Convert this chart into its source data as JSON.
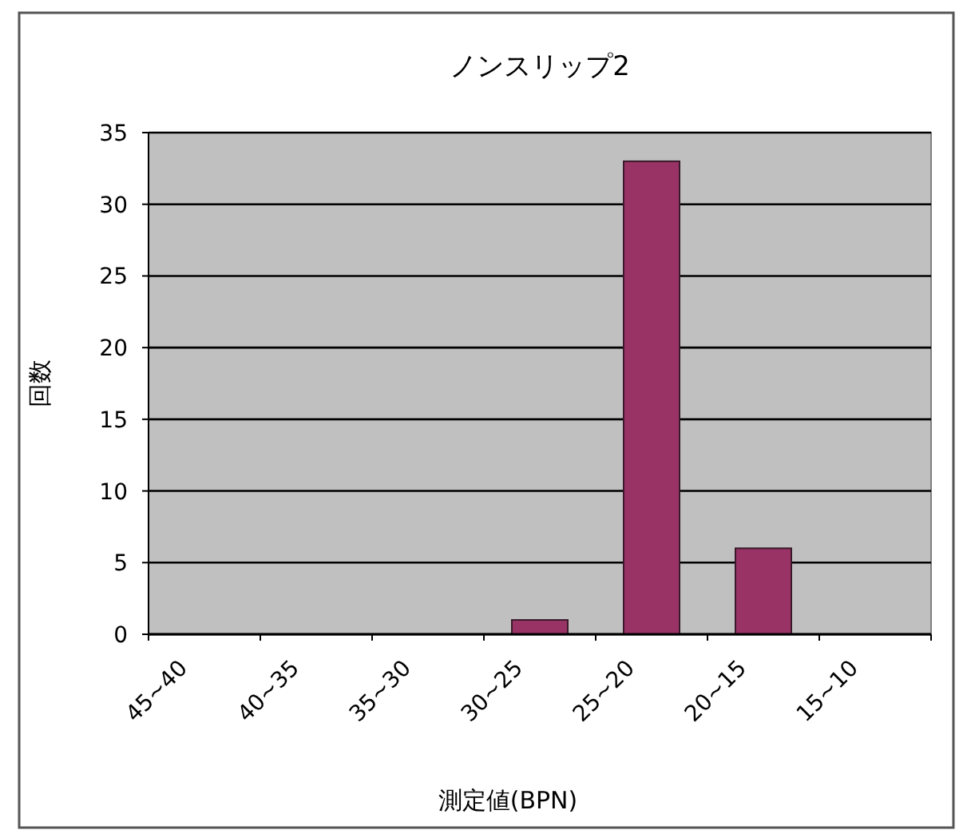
{
  "chart_data": {
    "type": "bar",
    "title": "ノンスリップ2",
    "xlabel": "測定値(BPN)",
    "ylabel": "回数",
    "categories": [
      "45~40",
      "40~35",
      "35~30",
      "30~25",
      "25~20",
      "20~15",
      "15~10"
    ],
    "values": [
      0,
      0,
      0,
      1,
      33,
      6,
      0
    ],
    "color": "#993366",
    "ylim": [
      0,
      35
    ],
    "yticks": [
      0,
      5,
      10,
      15,
      20,
      25,
      30,
      35
    ],
    "grid": "y"
  }
}
